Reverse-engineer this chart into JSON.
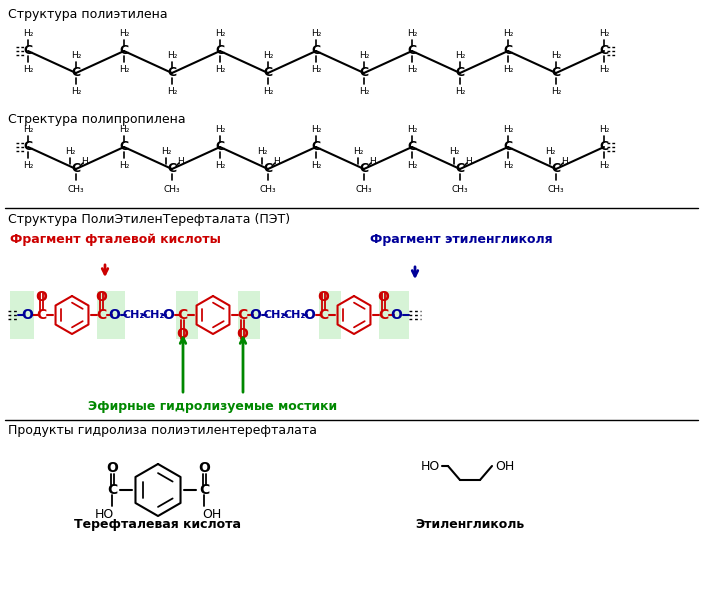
{
  "title_polyethylene": "Структура полиэтилена",
  "title_polypropylene": "Стректура полипропилена",
  "title_pet": "Структура ПолиЭтиленТерефталата (ПЭТ)",
  "title_hydrolysis": "Продукты гидролиза полиэтилентерефталата",
  "label_phthalic": "Фрагмент фталевой кислоты",
  "label_ethylene_glycol": "Фрагмент этиленгликоля",
  "label_ester_bridges": "Эфирные гидролизуемые мостики",
  "label_terephthalic": "Терефталевая кислота",
  "label_ethylene_glycol2": "Этиленгликоль",
  "color_red": "#cc0000",
  "color_blue": "#000099",
  "color_green_text": "#008800",
  "color_black": "#000000",
  "color_green_bg": "#ccf0cc",
  "bg_color": "#ffffff",
  "figsize": [
    7.03,
    6.02
  ],
  "dpi": 100
}
